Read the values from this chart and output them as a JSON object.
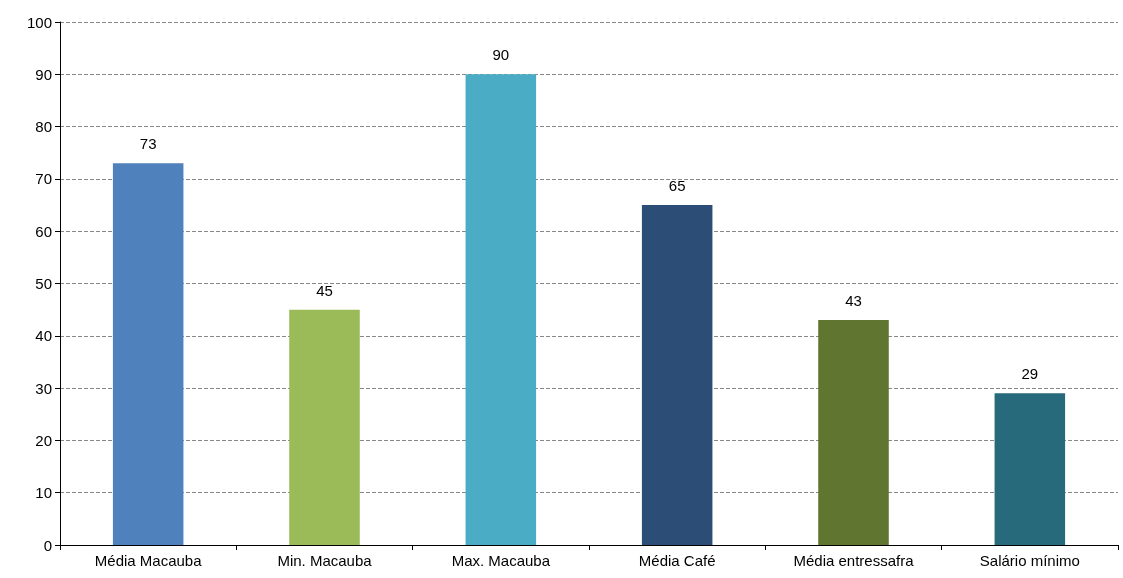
{
  "chart_data": {
    "type": "bar",
    "categories": [
      "Média Macauba",
      "Min. Macauba",
      "Max. Macauba",
      "Média Café",
      "Média entressafra",
      "Salário mínimo"
    ],
    "values": [
      73,
      45,
      90,
      65,
      43,
      29
    ],
    "colors": [
      "#4f81bd",
      "#9bbb59",
      "#4bacc6",
      "#2c4d75",
      "#5f7530",
      "#276a7c"
    ],
    "ylim": [
      0,
      100
    ],
    "yticks": [
      0,
      10,
      20,
      30,
      40,
      50,
      60,
      70,
      80,
      90,
      100
    ],
    "grid": "y",
    "data_labels": true
  }
}
